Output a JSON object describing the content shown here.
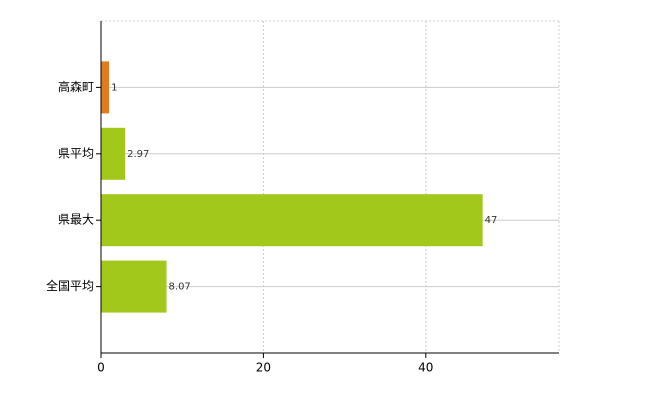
{
  "chart_data": {
    "type": "bar",
    "orientation": "horizontal",
    "categories": [
      "高森町",
      "県平均",
      "県最大",
      "全国平均"
    ],
    "values": [
      1,
      2.97,
      47,
      8.07
    ],
    "colors": [
      "#e07b1f",
      "#a3c81c",
      "#a3c81c",
      "#a3c81c"
    ],
    "xlim": [
      0,
      56.4
    ],
    "xticks": [
      0,
      20,
      40
    ],
    "grid": true
  }
}
